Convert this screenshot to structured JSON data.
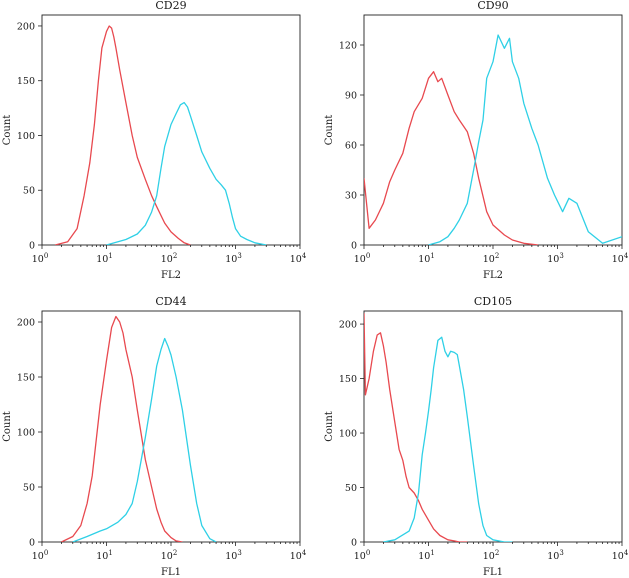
{
  "colors": {
    "isotype": "#e8494f",
    "marker": "#2fd0e6"
  },
  "chart_data": [
    {
      "type": "line",
      "title": "CD29",
      "xlabel": "FL2",
      "ylabel": "Count",
      "xscale": "log10",
      "xlim": [
        1,
        10000
      ],
      "ylim": [
        0,
        210
      ],
      "xticks": [
        {
          "base": "10",
          "exp": "0"
        },
        {
          "base": "10",
          "exp": "1"
        },
        {
          "base": "10",
          "exp": "2"
        },
        {
          "base": "10",
          "exp": "3"
        },
        {
          "base": "10",
          "exp": "4"
        }
      ],
      "yticks": [
        "0",
        "50",
        "100",
        "150",
        "200"
      ],
      "series": [
        {
          "name": "isotype",
          "color": "#e8494f",
          "x": [
            1.6,
            2.5,
            3.5,
            4.5,
            5.5,
            6.5,
            7.5,
            8.5,
            10,
            11,
            12,
            13,
            14,
            16,
            20,
            25,
            30,
            40,
            50,
            60,
            80,
            100,
            130,
            160,
            200
          ],
          "y": [
            0,
            3,
            15,
            45,
            75,
            110,
            150,
            180,
            195,
            200,
            198,
            190,
            180,
            160,
            130,
            100,
            80,
            60,
            45,
            35,
            20,
            12,
            6,
            2,
            0
          ]
        },
        {
          "name": "marker",
          "color": "#2fd0e6",
          "x": [
            10,
            20,
            30,
            40,
            50,
            60,
            70,
            80,
            100,
            120,
            140,
            160,
            180,
            200,
            250,
            300,
            400,
            500,
            600,
            700,
            800,
            900,
            1000,
            1200,
            1500,
            2000,
            3000
          ],
          "y": [
            0,
            5,
            10,
            18,
            30,
            45,
            70,
            90,
            110,
            120,
            128,
            130,
            126,
            118,
            100,
            85,
            70,
            60,
            55,
            50,
            38,
            25,
            15,
            8,
            5,
            2,
            0
          ]
        }
      ]
    },
    {
      "type": "line",
      "title": "CD90",
      "xlabel": "FL2",
      "ylabel": "Count",
      "xscale": "log10",
      "xlim": [
        1,
        10000
      ],
      "ylim": [
        0,
        138
      ],
      "xticks": [
        {
          "base": "10",
          "exp": "0"
        },
        {
          "base": "10",
          "exp": "1"
        },
        {
          "base": "10",
          "exp": "2"
        },
        {
          "base": "10",
          "exp": "3"
        },
        {
          "base": "10",
          "exp": "4"
        }
      ],
      "yticks": [
        "0",
        "30",
        "60",
        "90",
        "120"
      ],
      "series": [
        {
          "name": "isotype",
          "color": "#e8494f",
          "x": [
            1,
            1.2,
            1.5,
            2,
            2.5,
            3,
            4,
            5,
            6,
            8,
            10,
            12,
            14,
            16,
            20,
            25,
            30,
            40,
            50,
            60,
            80,
            100,
            150,
            200,
            300,
            500
          ],
          "y": [
            40,
            10,
            15,
            25,
            38,
            45,
            55,
            70,
            80,
            88,
            100,
            104,
            98,
            100,
            90,
            80,
            75,
            68,
            55,
            40,
            20,
            12,
            6,
            3,
            1,
            0
          ]
        },
        {
          "name": "marker",
          "color": "#2fd0e6",
          "x": [
            10,
            15,
            20,
            25,
            30,
            40,
            50,
            60,
            70,
            80,
            100,
            120,
            150,
            180,
            200,
            250,
            300,
            400,
            500,
            700,
            900,
            1200,
            1500,
            2000,
            3000,
            5000,
            10000
          ],
          "y": [
            0,
            2,
            5,
            10,
            15,
            25,
            45,
            62,
            75,
            100,
            110,
            126,
            118,
            124,
            110,
            100,
            85,
            70,
            60,
            40,
            30,
            20,
            28,
            25,
            8,
            1,
            5
          ]
        }
      ]
    },
    {
      "type": "line",
      "title": "CD44",
      "xlabel": "FL1",
      "ylabel": "Count",
      "xscale": "log10",
      "xlim": [
        1,
        10000
      ],
      "ylim": [
        0,
        210
      ],
      "xticks": [
        {
          "base": "10",
          "exp": "0"
        },
        {
          "base": "10",
          "exp": "1"
        },
        {
          "base": "10",
          "exp": "2"
        },
        {
          "base": "10",
          "exp": "3"
        },
        {
          "base": "10",
          "exp": "4"
        }
      ],
      "yticks": [
        "0",
        "50",
        "100",
        "150",
        "200"
      ],
      "series": [
        {
          "name": "isotype",
          "color": "#e8494f",
          "x": [
            2,
            3,
            4,
            5,
            6,
            7,
            8,
            10,
            12,
            14,
            16,
            18,
            20,
            25,
            30,
            40,
            50,
            60,
            70,
            80,
            100,
            120,
            150
          ],
          "y": [
            0,
            5,
            15,
            35,
            60,
            95,
            125,
            165,
            195,
            205,
            200,
            190,
            175,
            150,
            120,
            75,
            50,
            30,
            18,
            10,
            4,
            1,
            0
          ]
        },
        {
          "name": "marker",
          "color": "#2fd0e6",
          "x": [
            3,
            5,
            8,
            10,
            15,
            20,
            25,
            30,
            40,
            50,
            60,
            70,
            80,
            90,
            100,
            120,
            150,
            200,
            250,
            300,
            400,
            500
          ],
          "y": [
            0,
            5,
            10,
            12,
            18,
            25,
            35,
            55,
            95,
            130,
            160,
            175,
            185,
            178,
            170,
            150,
            120,
            70,
            35,
            15,
            3,
            0
          ]
        }
      ]
    },
    {
      "type": "line",
      "title": "CD105",
      "xlabel": "FL1",
      "ylabel": "Count",
      "xscale": "log10",
      "xlim": [
        1,
        10000
      ],
      "ylim": [
        0,
        212
      ],
      "xticks": [
        {
          "base": "10",
          "exp": "0"
        },
        {
          "base": "10",
          "exp": "1"
        },
        {
          "base": "10",
          "exp": "2"
        },
        {
          "base": "10",
          "exp": "3"
        },
        {
          "base": "10",
          "exp": "4"
        }
      ],
      "yticks": [
        "0",
        "50",
        "100",
        "150",
        "200"
      ],
      "series": [
        {
          "name": "isotype",
          "color": "#e8494f",
          "x": [
            1,
            1.05,
            1.2,
            1.4,
            1.6,
            1.8,
            2,
            2.2,
            2.5,
            3,
            3.5,
            4,
            4.5,
            5,
            6,
            7,
            8,
            10,
            12,
            15,
            20,
            25,
            30,
            40
          ],
          "y": [
            210,
            135,
            150,
            175,
            190,
            192,
            180,
            165,
            140,
            110,
            85,
            75,
            60,
            50,
            45,
            38,
            30,
            20,
            12,
            6,
            2,
            1,
            0,
            0
          ]
        },
        {
          "name": "marker",
          "color": "#2fd0e6",
          "x": [
            2,
            3,
            5,
            6,
            7,
            8,
            9,
            10,
            11,
            12,
            14,
            16,
            18,
            20,
            22,
            25,
            28,
            30,
            35,
            40,
            50,
            60,
            70,
            80,
            100,
            150,
            200
          ],
          "y": [
            0,
            2,
            10,
            22,
            45,
            80,
            100,
            120,
            140,
            160,
            185,
            188,
            175,
            170,
            175,
            174,
            172,
            162,
            140,
            115,
            70,
            35,
            15,
            6,
            2,
            0,
            0
          ]
        }
      ]
    }
  ]
}
